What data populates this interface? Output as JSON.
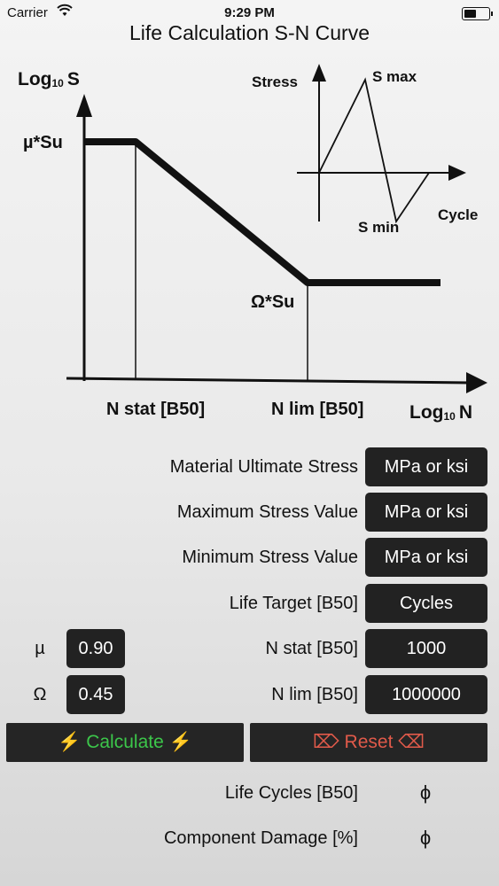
{
  "status_bar": {
    "carrier": "Carrier",
    "time": "9:29 PM"
  },
  "title": "Life Calculation S-N Curve",
  "diagram": {
    "y_axis_label_prefix": "Log",
    "y_axis_label_sub": "10",
    "y_axis_label_suffix": "S",
    "x_axis_label_prefix": "Log",
    "x_axis_label_sub": "10",
    "x_axis_label_suffix": "N",
    "mu_su": "µ*Su",
    "omega_su": "Ω*Su",
    "n_stat": "N stat [B50]",
    "n_lim": "N lim [B50]",
    "inset": {
      "stress": "Stress",
      "s_max": "S max",
      "s_min": "S min",
      "cycle": "Cycle"
    }
  },
  "inputs": [
    {
      "label": "Material Ultimate Stress",
      "value": "MPa or ksi"
    },
    {
      "label": "Maximum Stress Value",
      "value": "MPa or ksi"
    },
    {
      "label": "Minimum Stress Value",
      "value": "MPa or ksi"
    },
    {
      "label": "Life Target [B50]",
      "value": "Cycles"
    },
    {
      "label": "N stat [B50]",
      "value": "1000"
    },
    {
      "label": "N lim [B50]",
      "value": "1000000"
    }
  ],
  "coefficients": [
    {
      "label": "µ",
      "value": "0.90"
    },
    {
      "label": "Ω",
      "value": "0.45"
    }
  ],
  "buttons": {
    "calculate": "⚡ Calculate ⚡",
    "reset": "⌦ Reset ⌫"
  },
  "results": [
    {
      "label": "Life Cycles [B50]",
      "value": "ϕ"
    },
    {
      "label": "Component Damage [%]",
      "value": "ϕ"
    }
  ]
}
